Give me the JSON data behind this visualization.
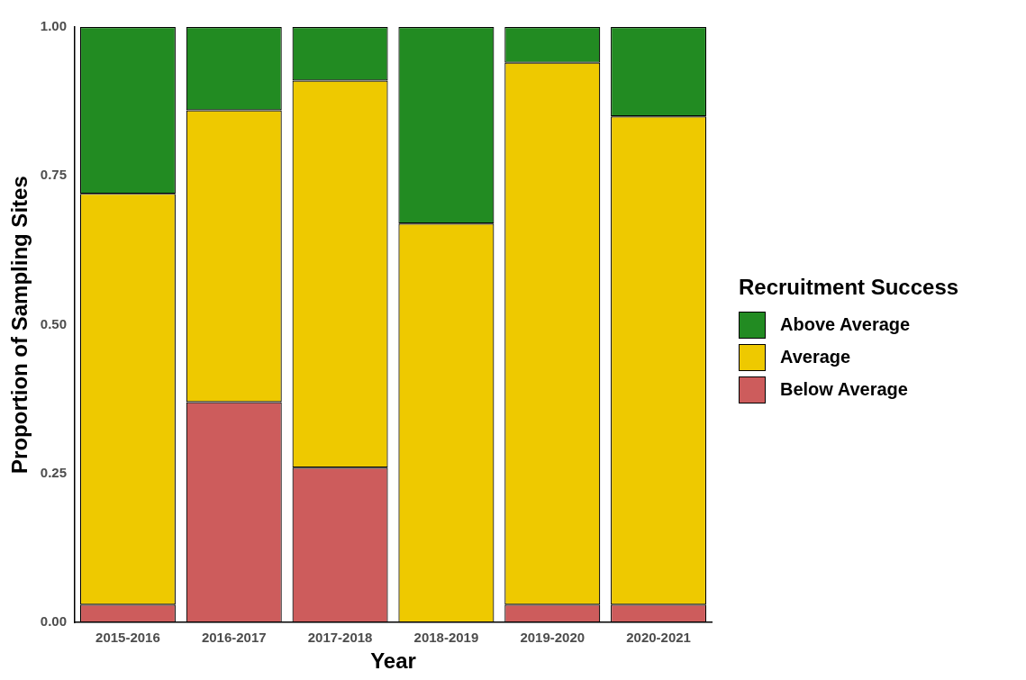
{
  "chart_data": {
    "type": "bar",
    "stacked": true,
    "xlabel": "Year",
    "ylabel": "Proportion of Sampling Sites",
    "legend_title": "Recruitment Success",
    "legend": "right",
    "grid": false,
    "categories": [
      "2015-2016",
      "2016-2017",
      "2017-2018",
      "2018-2019",
      "2019-2020",
      "2020-2021"
    ],
    "ylim": [
      0,
      1
    ],
    "yticks": [
      {
        "value": 0,
        "label": "0.00"
      },
      {
        "value": 0.25,
        "label": "0.25"
      },
      {
        "value": 0.5,
        "label": "0.50"
      },
      {
        "value": 0.75,
        "label": "0.75"
      },
      {
        "value": 1,
        "label": "1.00"
      }
    ],
    "series": [
      {
        "name": "Below Average",
        "color": "#cd5c5c",
        "values": [
          0.03,
          0.37,
          0.26,
          0,
          0.03,
          0.03
        ]
      },
      {
        "name": "Average",
        "color": "#eec900",
        "values": [
          0.69,
          0.49,
          0.65,
          0.67,
          0.91,
          0.82
        ]
      },
      {
        "name": "Above Average",
        "color": "#228b22",
        "values": [
          0.28,
          0.14,
          0.09,
          0.33,
          0.06,
          0.15
        ]
      }
    ]
  }
}
